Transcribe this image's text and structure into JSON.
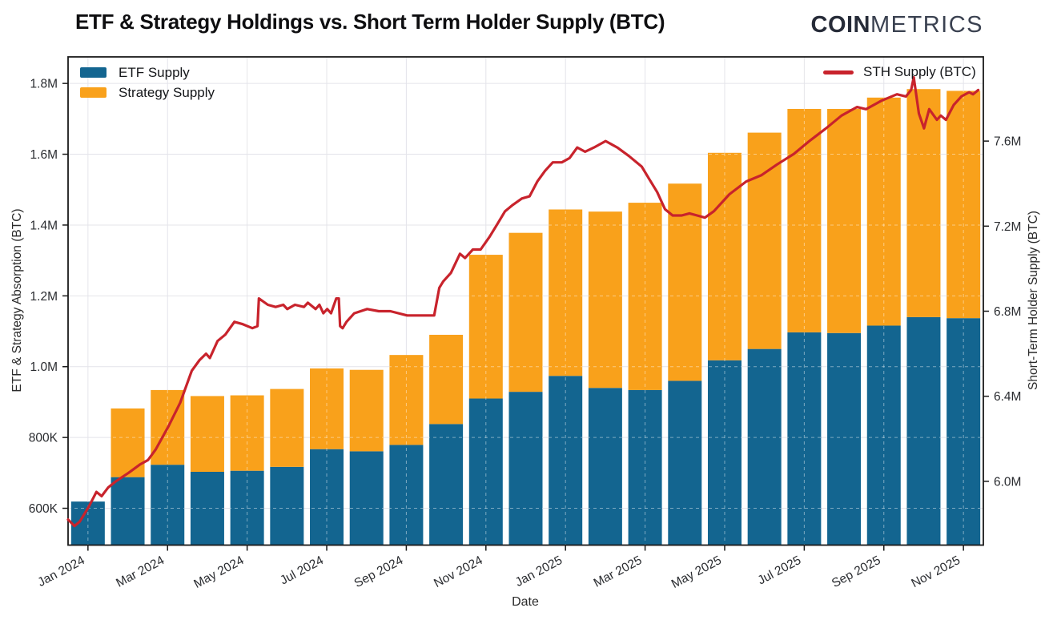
{
  "header": {
    "title": "ETF & Strategy Holdings vs. Short Term Holder Supply (BTC)",
    "logo_bold": "COIN",
    "logo_light": "METRICS"
  },
  "legend": {
    "etf": "ETF Supply",
    "strategy": "Strategy Supply",
    "sth": "STH Supply (BTC)"
  },
  "axes": {
    "x": {
      "title": "Date",
      "ticks": [
        {
          "label": "Jan 2024",
          "month": 0
        },
        {
          "label": "Mar 2024",
          "month": 2
        },
        {
          "label": "May 2024",
          "month": 4
        },
        {
          "label": "Jul 2024",
          "month": 6
        },
        {
          "label": "Sep 2024",
          "month": 8
        },
        {
          "label": "Nov 2024",
          "month": 10
        },
        {
          "label": "Jan 2025",
          "month": 12
        },
        {
          "label": "Mar 2025",
          "month": 14
        },
        {
          "label": "May 2025",
          "month": 16
        },
        {
          "label": "Jul 2025",
          "month": 18
        },
        {
          "label": "Sep 2025",
          "month": 20
        },
        {
          "label": "Nov 2025",
          "month": 22
        }
      ]
    },
    "y_left": {
      "title": "ETF & Strategy Absorption (BTC)",
      "ticks": [
        {
          "label": "600K",
          "value_k": 600
        },
        {
          "label": "800K",
          "value_k": 800
        },
        {
          "label": "1.0M",
          "value_k": 1000
        },
        {
          "label": "1.2M",
          "value_k": 1200
        },
        {
          "label": "1.4M",
          "value_k": 1400
        },
        {
          "label": "1.6M",
          "value_k": 1600
        },
        {
          "label": "1.8M",
          "value_k": 1800
        }
      ]
    },
    "y_right": {
      "title": "Short-Term Holder Supply (BTC)",
      "ticks": [
        {
          "label": "6.0M",
          "value_m": 6.0
        },
        {
          "label": "6.4M",
          "value_m": 6.4
        },
        {
          "label": "6.8M",
          "value_m": 6.8
        },
        {
          "label": "7.2M",
          "value_m": 7.2
        },
        {
          "label": "7.6M",
          "value_m": 7.6
        }
      ]
    }
  },
  "colors": {
    "etf_bar": "#136590",
    "strategy_bar": "#f9a11b",
    "sth_line": "#c8232c",
    "grid": "#e4e4ea",
    "grid_on_bars": "rgba(255,255,255,0.45)",
    "frame": "#1a1a1a",
    "tick_text": "#2a2c30"
  },
  "chart_data": {
    "type": "stacked-bar+line",
    "title": "ETF & Strategy Holdings vs. Short Term Holder Supply (BTC)",
    "xlabel": "Date",
    "ylabel_left": "ETF & Strategy Absorption (BTC)",
    "ylabel_right": "Short-Term Holder Supply (BTC)",
    "grid": true,
    "legend_position": {
      "bars": "top-left",
      "line": "top-right"
    },
    "categories": [
      "Jan 2024",
      "Feb 2024",
      "Mar 2024",
      "Apr 2024",
      "May 2024",
      "Jun 2024",
      "Jul 2024",
      "Aug 2024",
      "Sep 2024",
      "Oct 2024",
      "Nov 2024",
      "Dec 2024",
      "Jan 2025",
      "Feb 2025",
      "Mar 2025",
      "Apr 2025",
      "May 2025",
      "Jun 2025",
      "Jul 2025",
      "Aug 2025",
      "Sep 2025",
      "Oct 2025",
      "Nov 2025"
    ],
    "bar_series": [
      {
        "name": "ETF Supply",
        "unit": "thousand BTC",
        "values_k": [
          619,
          688,
          723,
          703,
          706,
          717,
          767,
          761,
          779,
          838,
          910,
          929,
          974,
          940,
          934,
          960,
          1018,
          1050,
          1097,
          1095,
          1116,
          1140,
          1137
        ]
      },
      {
        "name": "Strategy Supply",
        "unit": "thousand BTC",
        "values_k": [
          0,
          194,
          211,
          214,
          213,
          220,
          228,
          230,
          254,
          252,
          406,
          449,
          470,
          498,
          529,
          557,
          586,
          611,
          631,
          633,
          644,
          644,
          642
        ]
      }
    ],
    "bar_totals_k": [
      619,
      882,
      934,
      917,
      919,
      937,
      995,
      991,
      1033,
      1090,
      1316,
      1378,
      1444,
      1438,
      1463,
      1517,
      1604,
      1661,
      1728,
      1728,
      1760,
      1784,
      1779
    ],
    "line_series": {
      "name": "STH Supply (BTC)",
      "axis": "right",
      "unit": "million BTC",
      "x_unit": "days since 2024-01-01",
      "x_domain_days": [
        0,
        710
      ],
      "points_day_value": [
        [
          0,
          5.82
        ],
        [
          5,
          5.79
        ],
        [
          9,
          5.81
        ],
        [
          16,
          5.88
        ],
        [
          22,
          5.95
        ],
        [
          26,
          5.93
        ],
        [
          31,
          5.97
        ],
        [
          37,
          6.0
        ],
        [
          47,
          6.04
        ],
        [
          56,
          6.08
        ],
        [
          62,
          6.1
        ],
        [
          68,
          6.15
        ],
        [
          78,
          6.26
        ],
        [
          87,
          6.37
        ],
        [
          96,
          6.52
        ],
        [
          102,
          6.57
        ],
        [
          107,
          6.6
        ],
        [
          110,
          6.58
        ],
        [
          116,
          6.66
        ],
        [
          122,
          6.69
        ],
        [
          129,
          6.75
        ],
        [
          135,
          6.74
        ],
        [
          143,
          6.72
        ],
        [
          147,
          6.73
        ],
        [
          148,
          6.86
        ],
        [
          155,
          6.83
        ],
        [
          161,
          6.82
        ],
        [
          167,
          6.83
        ],
        [
          170,
          6.81
        ],
        [
          176,
          6.83
        ],
        [
          183,
          6.82
        ],
        [
          186,
          6.84
        ],
        [
          192,
          6.81
        ],
        [
          195,
          6.83
        ],
        [
          198,
          6.79
        ],
        [
          201,
          6.81
        ],
        [
          204,
          6.79
        ],
        [
          208,
          6.86
        ],
        [
          210,
          6.86
        ],
        [
          211,
          6.73
        ],
        [
          213,
          6.72
        ],
        [
          216,
          6.75
        ],
        [
          222,
          6.79
        ],
        [
          232,
          6.81
        ],
        [
          241,
          6.8
        ],
        [
          250,
          6.8
        ],
        [
          263,
          6.78
        ],
        [
          275,
          6.78
        ],
        [
          284,
          6.78
        ],
        [
          288,
          6.91
        ],
        [
          291,
          6.94
        ],
        [
          297,
          6.98
        ],
        [
          304,
          7.07
        ],
        [
          308,
          7.05
        ],
        [
          314,
          7.09
        ],
        [
          320,
          7.09
        ],
        [
          327,
          7.15
        ],
        [
          333,
          7.21
        ],
        [
          339,
          7.27
        ],
        [
          345,
          7.3
        ],
        [
          352,
          7.33
        ],
        [
          358,
          7.34
        ],
        [
          364,
          7.41
        ],
        [
          370,
          7.46
        ],
        [
          376,
          7.5
        ],
        [
          383,
          7.5
        ],
        [
          389,
          7.52
        ],
        [
          395,
          7.57
        ],
        [
          401,
          7.55
        ],
        [
          408,
          7.57
        ],
        [
          417,
          7.6
        ],
        [
          426,
          7.57
        ],
        [
          435,
          7.53
        ],
        [
          445,
          7.48
        ],
        [
          451,
          7.42
        ],
        [
          457,
          7.36
        ],
        [
          463,
          7.28
        ],
        [
          469,
          7.25
        ],
        [
          476,
          7.25
        ],
        [
          482,
          7.26
        ],
        [
          488,
          7.25
        ],
        [
          494,
          7.24
        ],
        [
          501,
          7.27
        ],
        [
          513,
          7.35
        ],
        [
          526,
          7.41
        ],
        [
          538,
          7.44
        ],
        [
          550,
          7.49
        ],
        [
          563,
          7.54
        ],
        [
          575,
          7.6
        ],
        [
          588,
          7.66
        ],
        [
          600,
          7.72
        ],
        [
          612,
          7.76
        ],
        [
          619,
          7.75
        ],
        [
          631,
          7.79
        ],
        [
          643,
          7.82
        ],
        [
          650,
          7.81
        ],
        [
          654,
          7.84
        ],
        [
          656,
          7.9
        ],
        [
          660,
          7.73
        ],
        [
          664,
          7.66
        ],
        [
          668,
          7.75
        ],
        [
          674,
          7.7
        ],
        [
          677,
          7.72
        ],
        [
          681,
          7.7
        ],
        [
          687,
          7.77
        ],
        [
          693,
          7.81
        ],
        [
          699,
          7.83
        ],
        [
          702,
          7.82
        ],
        [
          706,
          7.84
        ]
      ]
    },
    "ylim_left_k": [
      496,
      1875
    ],
    "ylim_right_m": [
      5.7,
      7.996
    ]
  }
}
